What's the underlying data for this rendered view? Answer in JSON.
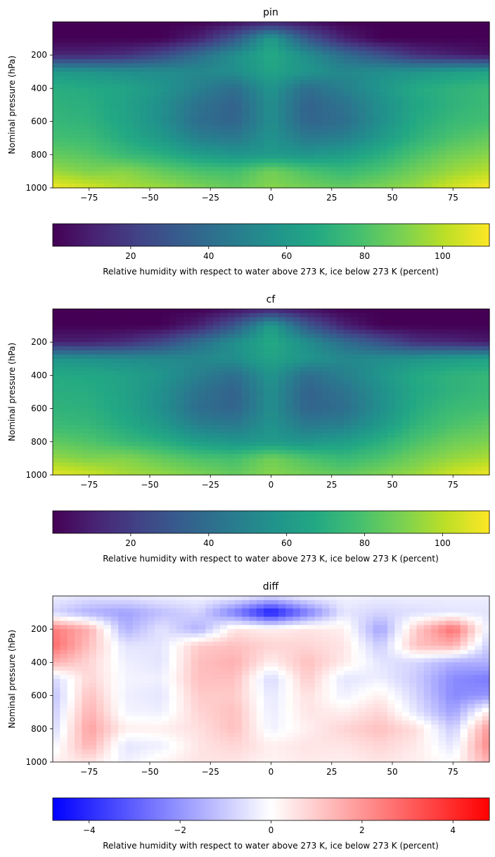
{
  "chart_data": [
    {
      "type": "heatmap",
      "title": "pin",
      "xlabel": "",
      "ylabel": "Nominal pressure (hPa)",
      "xlim": [
        -90,
        90
      ],
      "ylim": [
        1000,
        0
      ],
      "xticks": [
        -75,
        -50,
        -25,
        0,
        25,
        50,
        75
      ],
      "yticks": [
        200,
        400,
        600,
        800,
        1000
      ],
      "colormap": "viridis",
      "field": {
        "x": [
          -90,
          -75,
          -60,
          -45,
          -30,
          -15,
          0,
          15,
          30,
          45,
          60,
          75,
          90
        ],
        "y": [
          0,
          100,
          200,
          300,
          400,
          500,
          600,
          700,
          800,
          900,
          1000
        ],
        "z": [
          [
            0,
            0,
            0,
            0,
            0,
            5,
            10,
            5,
            0,
            0,
            0,
            0,
            0
          ],
          [
            0,
            0,
            0,
            0,
            10,
            30,
            62,
            30,
            10,
            0,
            0,
            0,
            0
          ],
          [
            12,
            12,
            15,
            25,
            40,
            55,
            68,
            55,
            40,
            28,
            15,
            10,
            5
          ],
          [
            60,
            58,
            55,
            54,
            52,
            55,
            65,
            58,
            52,
            55,
            58,
            62,
            65
          ],
          [
            70,
            68,
            65,
            58,
            48,
            40,
            58,
            40,
            48,
            58,
            68,
            72,
            75
          ],
          [
            72,
            70,
            64,
            55,
            42,
            35,
            55,
            35,
            42,
            55,
            66,
            72,
            76
          ],
          [
            74,
            72,
            65,
            55,
            40,
            36,
            55,
            36,
            40,
            55,
            68,
            75,
            78
          ],
          [
            78,
            76,
            68,
            60,
            48,
            45,
            57,
            45,
            48,
            60,
            72,
            80,
            85
          ],
          [
            85,
            82,
            75,
            70,
            62,
            58,
            60,
            58,
            62,
            70,
            80,
            88,
            92
          ],
          [
            95,
            90,
            92,
            85,
            80,
            78,
            88,
            80,
            75,
            80,
            88,
            95,
            100
          ],
          [
            110,
            105,
            98,
            95,
            90,
            85,
            92,
            88,
            85,
            90,
            95,
            105,
            112
          ]
        ]
      },
      "colorbar": {
        "label": "Relative humidity with respect to water above 273 K, ice below 273 K (percent)",
        "range": [
          0,
          112
        ],
        "ticks": [
          20,
          40,
          60,
          80,
          100
        ]
      }
    },
    {
      "type": "heatmap",
      "title": "cf",
      "xlabel": "",
      "ylabel": "Nominal pressure (hPa)",
      "xlim": [
        -90,
        90
      ],
      "ylim": [
        1000,
        0
      ],
      "xticks": [
        -75,
        -50,
        -25,
        0,
        25,
        50,
        75
      ],
      "yticks": [
        200,
        400,
        600,
        800,
        1000
      ],
      "colormap": "viridis",
      "field": {
        "x": [
          -90,
          -75,
          -60,
          -45,
          -30,
          -15,
          0,
          15,
          30,
          45,
          60,
          75,
          90
        ],
        "y": [
          0,
          100,
          200,
          300,
          400,
          500,
          600,
          700,
          800,
          900,
          1000
        ],
        "z": [
          [
            0,
            0,
            0,
            0,
            0,
            5,
            10,
            5,
            0,
            0,
            0,
            0,
            0
          ],
          [
            0,
            0,
            0,
            0,
            10,
            30,
            62,
            30,
            10,
            0,
            0,
            0,
            0
          ],
          [
            10,
            10,
            14,
            24,
            40,
            55,
            68,
            55,
            40,
            28,
            15,
            12,
            8
          ],
          [
            58,
            56,
            54,
            53,
            52,
            55,
            65,
            58,
            52,
            54,
            58,
            62,
            64
          ],
          [
            68,
            67,
            64,
            58,
            48,
            40,
            58,
            40,
            48,
            58,
            68,
            72,
            74
          ],
          [
            70,
            69,
            64,
            55,
            42,
            35,
            55,
            35,
            42,
            55,
            67,
            72,
            75
          ],
          [
            72,
            71,
            65,
            55,
            40,
            36,
            55,
            36,
            40,
            55,
            69,
            76,
            78
          ],
          [
            76,
            74,
            68,
            60,
            48,
            45,
            57,
            45,
            48,
            60,
            73,
            80,
            84
          ],
          [
            84,
            81,
            75,
            70,
            62,
            58,
            60,
            58,
            62,
            70,
            80,
            87,
            90
          ],
          [
            94,
            90,
            91,
            85,
            80,
            78,
            88,
            80,
            75,
            80,
            88,
            94,
            98
          ],
          [
            108,
            104,
            97,
            94,
            90,
            85,
            92,
            88,
            85,
            90,
            95,
            104,
            110
          ]
        ]
      },
      "colorbar": {
        "label": "Relative humidity with respect to water above 273 K, ice below 273 K (percent)",
        "range": [
          0,
          112
        ],
        "ticks": [
          20,
          40,
          60,
          80,
          100
        ]
      }
    },
    {
      "type": "heatmap",
      "title": "diff",
      "xlabel": "",
      "ylabel": "Nominal pressure (hPa)",
      "xlim": [
        -90,
        90
      ],
      "ylim": [
        1000,
        0
      ],
      "xticks": [
        -75,
        -50,
        -25,
        0,
        25,
        50,
        75
      ],
      "yticks": [
        200,
        400,
        600,
        800,
        1000
      ],
      "colormap": "bwr",
      "field": {
        "x": [
          -90,
          -75,
          -60,
          -45,
          -30,
          -15,
          0,
          15,
          30,
          45,
          60,
          75,
          90
        ],
        "y": [
          0,
          100,
          200,
          300,
          400,
          500,
          600,
          700,
          800,
          900,
          1000
        ],
        "z": [
          [
            -0.3,
            -0.5,
            -0.4,
            -0.3,
            -0.2,
            -0.2,
            -0.6,
            -0.2,
            -0.2,
            -0.3,
            -0.3,
            -0.3,
            -0.3
          ],
          [
            -0.8,
            -1.5,
            -1.8,
            -1.2,
            -0.8,
            -2.5,
            -4.5,
            -2.5,
            -0.5,
            -0.8,
            -0.6,
            -0.5,
            -0.5
          ],
          [
            2.5,
            1.5,
            -1.5,
            -0.5,
            -1.5,
            0.5,
            0.3,
            0.5,
            0.3,
            -1.8,
            1.0,
            2.8,
            -0.5
          ],
          [
            2.8,
            1.2,
            -0.5,
            -0.5,
            1.0,
            1.2,
            0.8,
            0.8,
            0.5,
            -1.0,
            1.2,
            1.5,
            -1.0
          ],
          [
            1.5,
            0.8,
            -0.3,
            -0.5,
            1.2,
            1.5,
            0.3,
            1.2,
            0.4,
            -0.5,
            -0.8,
            -1.5,
            -1.5
          ],
          [
            -0.8,
            0.8,
            -0.2,
            -0.3,
            1.2,
            1.2,
            -0.8,
            1.0,
            -0.5,
            -0.3,
            -1.0,
            -2.2,
            -2.5
          ],
          [
            -1.2,
            1.2,
            -0.3,
            -0.5,
            1.0,
            1.0,
            -0.5,
            0.6,
            -0.3,
            0.3,
            -0.8,
            -2.2,
            -2.0
          ],
          [
            -1.0,
            1.5,
            -0.2,
            -0.3,
            0.8,
            1.2,
            -0.4,
            0.5,
            0.3,
            0.8,
            -0.5,
            -1.8,
            0.5
          ],
          [
            -0.8,
            1.8,
            0.3,
            0.3,
            0.6,
            1.2,
            -0.3,
            0.3,
            0.8,
            1.2,
            0.6,
            -1.0,
            2.0
          ],
          [
            -0.3,
            1.5,
            -0.5,
            -0.3,
            0.5,
            0.8,
            0.3,
            0.5,
            0.5,
            0.8,
            0.4,
            -0.5,
            2.3
          ],
          [
            0.3,
            0.5,
            -0.3,
            0.2,
            0.5,
            0.5,
            0.2,
            0.4,
            0.3,
            0.5,
            0.3,
            0.0,
            1.5
          ]
        ]
      },
      "colorbar": {
        "label": "Relative humidity with respect to water above 273 K, ice below 273 K (percent)",
        "range": [
          -4.8,
          4.8
        ],
        "ticks": [
          -4,
          -2,
          0,
          2,
          4
        ]
      }
    }
  ]
}
